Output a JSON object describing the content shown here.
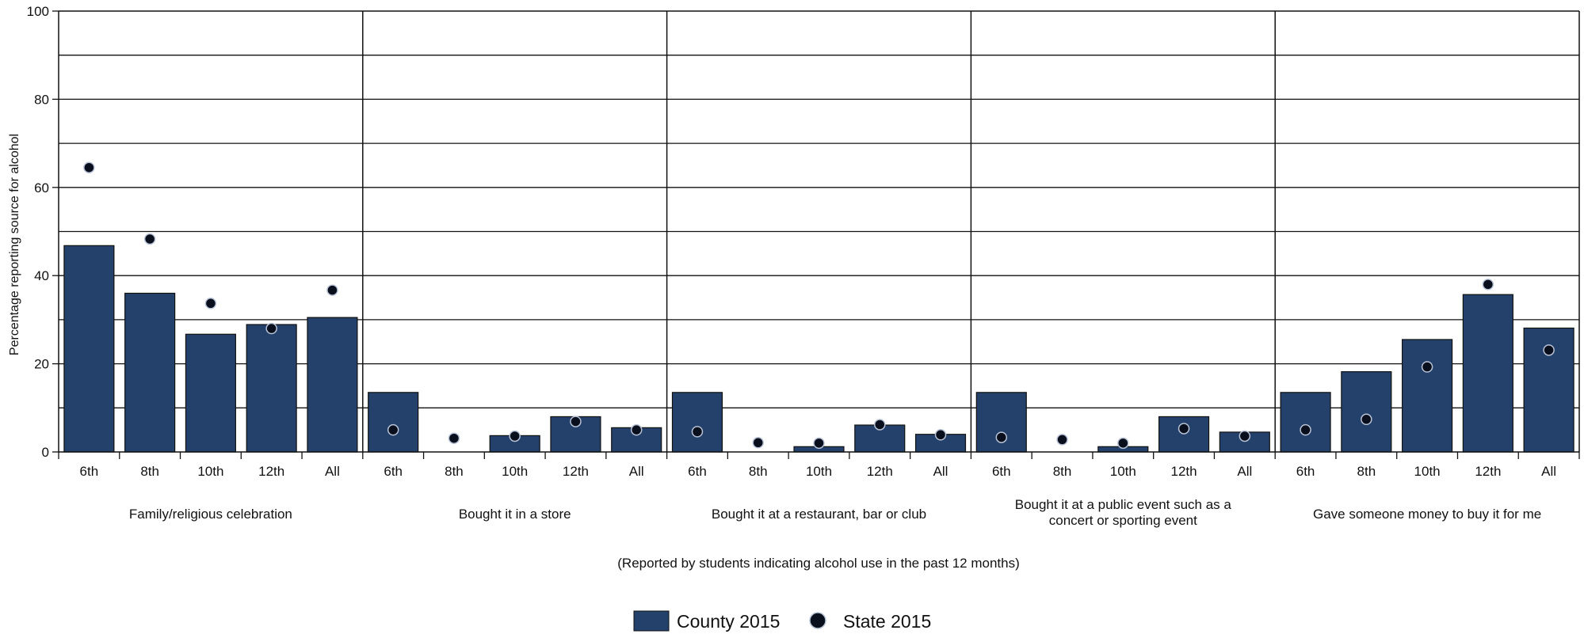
{
  "chart_data": {
    "type": "bar",
    "ylabel": "Percentage reporting source for alcohol",
    "ylim": [
      0,
      100
    ],
    "yticks": [
      0,
      20,
      40,
      60,
      80,
      100
    ],
    "grid": true,
    "note": "(Reported by students indicating alcohol use in the past 12 months)",
    "legend_placement": "bottom-center",
    "colors": {
      "bar": "#24416b",
      "dot": "#0a0f1e",
      "dot_outline": "#b9c3d6"
    },
    "groups": [
      {
        "label_lines": [
          "Family/religious celebration"
        ],
        "categories": [
          "6th",
          "8th",
          "10th",
          "12th",
          "All"
        ],
        "county": [
          46.8,
          36.0,
          26.7,
          28.9,
          30.5
        ],
        "state": [
          64.5,
          48.3,
          33.7,
          28.0,
          36.7
        ]
      },
      {
        "label_lines": [
          "Bought it in a store"
        ],
        "categories": [
          "6th",
          "8th",
          "10th",
          "12th",
          "All"
        ],
        "county": [
          13.5,
          0,
          3.7,
          8.0,
          5.5
        ],
        "state": [
          5.0,
          3.1,
          3.6,
          6.9,
          5.0
        ]
      },
      {
        "label_lines": [
          "Bought it at a restaurant, bar or club"
        ],
        "categories": [
          "6th",
          "8th",
          "10th",
          "12th",
          "All"
        ],
        "county": [
          13.5,
          0,
          1.2,
          6.1,
          4.0
        ],
        "state": [
          4.6,
          2.1,
          2.0,
          6.2,
          3.9
        ]
      },
      {
        "label_lines": [
          "Bought it at a public event such as a",
          "concert or sporting event"
        ],
        "categories": [
          "6th",
          "8th",
          "10th",
          "12th",
          "All"
        ],
        "county": [
          13.5,
          0,
          1.2,
          8.0,
          4.5
        ],
        "state": [
          3.3,
          2.8,
          2.0,
          5.3,
          3.6
        ]
      },
      {
        "label_lines": [
          "Gave someone money to buy it for me"
        ],
        "categories": [
          "6th",
          "8th",
          "10th",
          "12th",
          "All"
        ],
        "county": [
          13.5,
          18.2,
          25.5,
          35.7,
          28.1
        ],
        "state": [
          5.0,
          7.4,
          19.3,
          38.0,
          23.1
        ]
      }
    ],
    "series": [
      {
        "name": "County 2015",
        "kind": "bar"
      },
      {
        "name": "State 2015",
        "kind": "dot"
      }
    ]
  }
}
